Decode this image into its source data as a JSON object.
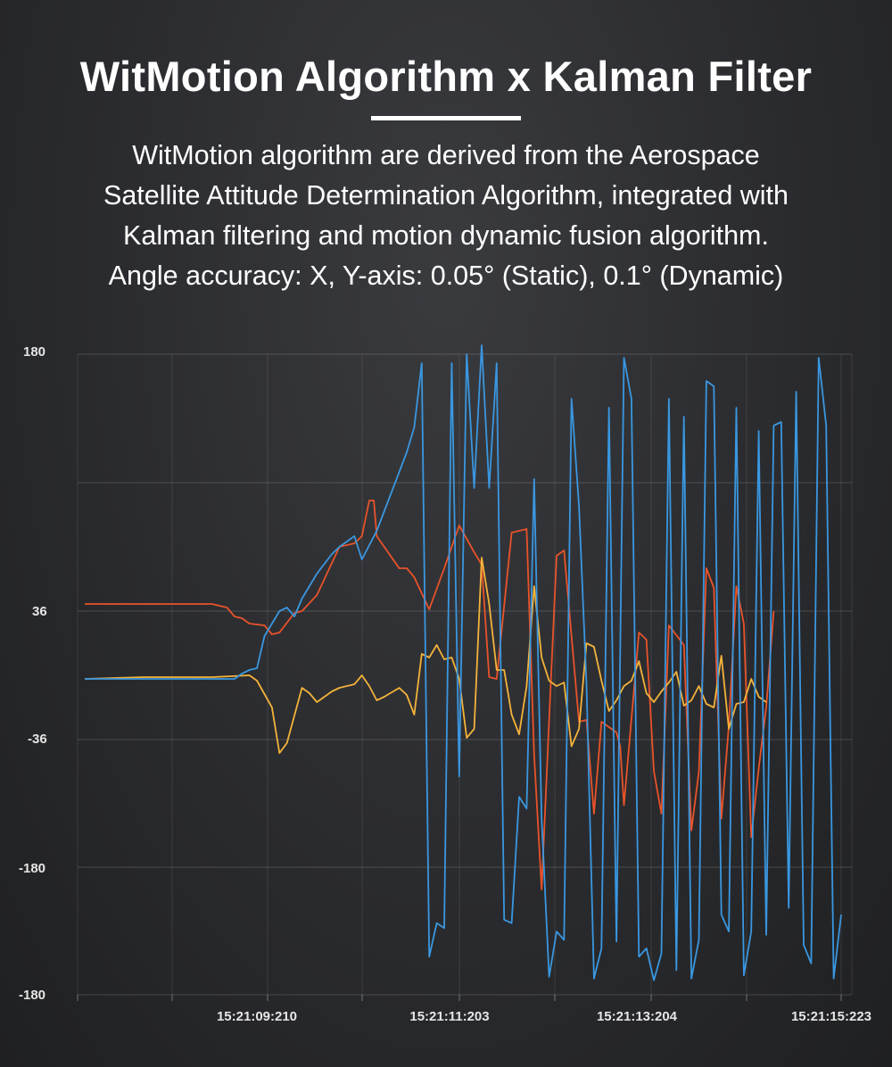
{
  "header": {
    "title": "WitMotion Algorithm x Kalman Filter",
    "description_lines": [
      "WitMotion algorithm are derived from the Aerospace",
      "Satellite Attitude Determination Algorithm, integrated with",
      "Kalman filtering and motion dynamic fusion algorithm.",
      "Angle accuracy: X, Y-axis: 0.05° (Static), 0.1° (Dynamic)"
    ]
  },
  "chart_data": {
    "type": "line",
    "title": "",
    "xlabel": "",
    "ylabel": "",
    "ylim": [
      -180,
      180
    ],
    "y_tick_labels": [
      "180",
      "36",
      "-36",
      "-180",
      "-180"
    ],
    "x_tick_labels": [
      "15:21:09:210",
      "15:21:11:203",
      "15:21:13:204",
      "15:21:15:223"
    ],
    "grid": true,
    "legend": "none",
    "series": [
      {
        "color": "#e8532b",
        "points": [
          [
            0,
            40
          ],
          [
            8,
            40
          ],
          [
            17,
            40
          ],
          [
            19,
            38
          ],
          [
            20,
            33
          ],
          [
            21,
            32
          ],
          [
            22,
            29
          ],
          [
            24,
            28
          ],
          [
            25,
            23
          ],
          [
            26,
            24
          ],
          [
            28,
            35
          ],
          [
            29,
            36
          ],
          [
            31,
            45
          ],
          [
            34,
            72
          ],
          [
            36,
            74
          ],
          [
            37,
            78
          ],
          [
            38,
            98
          ],
          [
            38.6,
            98
          ],
          [
            39,
            78
          ],
          [
            42,
            60
          ],
          [
            43,
            60
          ],
          [
            44,
            55
          ],
          [
            46,
            37
          ],
          [
            48,
            60
          ],
          [
            50,
            84
          ],
          [
            52,
            69
          ],
          [
            53,
            62
          ],
          [
            54,
            -1
          ],
          [
            55,
            -2
          ],
          [
            57,
            80
          ],
          [
            59,
            82
          ],
          [
            60,
            -45
          ],
          [
            61,
            -125
          ],
          [
            62,
            -25
          ],
          [
            63,
            67
          ],
          [
            64,
            70
          ],
          [
            66,
            -26
          ],
          [
            67,
            -25
          ],
          [
            68,
            -80
          ],
          [
            69,
            -26
          ],
          [
            71,
            -32
          ],
          [
            71.5,
            -40
          ],
          [
            72,
            -75
          ],
          [
            74,
            24
          ],
          [
            75,
            20
          ],
          [
            76,
            -55
          ],
          [
            77,
            -80
          ],
          [
            78,
            28
          ],
          [
            80,
            17
          ],
          [
            81,
            -90
          ],
          [
            82,
            -55
          ],
          [
            83,
            60
          ],
          [
            84,
            49
          ],
          [
            85,
            -83
          ],
          [
            86,
            -28
          ],
          [
            87,
            50
          ],
          [
            88,
            29
          ],
          [
            89,
            -94
          ],
          [
            90,
            -53
          ],
          [
            91,
            -18
          ],
          [
            92,
            36
          ]
        ]
      },
      {
        "color": "#f3b33b",
        "points": [
          [
            0,
            -2
          ],
          [
            8,
            -1
          ],
          [
            17,
            -1
          ],
          [
            22,
            0
          ],
          [
            23,
            -3
          ],
          [
            25,
            -18
          ],
          [
            26,
            -44
          ],
          [
            27,
            -38
          ],
          [
            29,
            -7
          ],
          [
            30,
            -10
          ],
          [
            31,
            -15
          ],
          [
            32,
            -12
          ],
          [
            33,
            -9
          ],
          [
            34,
            -7
          ],
          [
            36,
            -5
          ],
          [
            37,
            0
          ],
          [
            38,
            -6
          ],
          [
            39,
            -14
          ],
          [
            40,
            -12
          ],
          [
            42,
            -7
          ],
          [
            43,
            -11
          ],
          [
            44,
            -22
          ],
          [
            45,
            12
          ],
          [
            46,
            10
          ],
          [
            47,
            17
          ],
          [
            48,
            9
          ],
          [
            49,
            10
          ],
          [
            50,
            -2
          ],
          [
            51,
            -35
          ],
          [
            52,
            -30
          ],
          [
            53,
            66
          ],
          [
            54,
            40
          ],
          [
            55,
            3
          ],
          [
            56,
            3
          ],
          [
            57,
            -22
          ],
          [
            58,
            -33
          ],
          [
            59,
            -6
          ],
          [
            60,
            50
          ],
          [
            61,
            10
          ],
          [
            62,
            -3
          ],
          [
            63,
            -6
          ],
          [
            64,
            -4
          ],
          [
            65,
            -40
          ],
          [
            66,
            -30
          ],
          [
            67,
            18
          ],
          [
            68,
            16
          ],
          [
            69,
            -3
          ],
          [
            70,
            -20
          ],
          [
            71,
            -14
          ],
          [
            72,
            -6
          ],
          [
            73,
            -3
          ],
          [
            74,
            8
          ],
          [
            75,
            -10
          ],
          [
            76,
            -15
          ],
          [
            77,
            -9
          ],
          [
            78,
            -4
          ],
          [
            79,
            2
          ],
          [
            80,
            -17
          ],
          [
            81,
            -14
          ],
          [
            82,
            -6
          ],
          [
            83,
            -16
          ],
          [
            84,
            -18
          ],
          [
            85,
            11
          ],
          [
            86,
            -30
          ],
          [
            87,
            -16
          ],
          [
            88,
            -15
          ],
          [
            89,
            -2
          ],
          [
            90,
            -12
          ],
          [
            91,
            -15
          ]
        ]
      },
      {
        "color": "#3a97e0",
        "points": [
          [
            0,
            -2
          ],
          [
            8,
            -2
          ],
          [
            17,
            -2
          ],
          [
            20,
            -2
          ],
          [
            21,
            1
          ],
          [
            22,
            3
          ],
          [
            23,
            4
          ],
          [
            24,
            22
          ],
          [
            26,
            36
          ],
          [
            27,
            38
          ],
          [
            28,
            33
          ],
          [
            29,
            43
          ],
          [
            31,
            57
          ],
          [
            33,
            68
          ],
          [
            34,
            72
          ],
          [
            36,
            78
          ],
          [
            37,
            65
          ],
          [
            39,
            81
          ],
          [
            43,
            125
          ],
          [
            44,
            139
          ],
          [
            45,
            175
          ],
          [
            46,
            -165
          ],
          [
            47,
            -145
          ],
          [
            48,
            -148
          ],
          [
            49,
            175
          ],
          [
            50,
            -58
          ],
          [
            51,
            180
          ],
          [
            52,
            105
          ],
          [
            53,
            185
          ],
          [
            54,
            105
          ],
          [
            55,
            175
          ],
          [
            56,
            -143
          ],
          [
            57,
            -145
          ],
          [
            58,
            -70
          ],
          [
            59,
            -77
          ],
          [
            60,
            110
          ],
          [
            61,
            -83
          ],
          [
            62,
            -177
          ],
          [
            63,
            -150
          ],
          [
            64,
            -155
          ],
          [
            65,
            155
          ],
          [
            66,
            95
          ],
          [
            67,
            -5
          ],
          [
            68,
            -178
          ],
          [
            69,
            -160
          ],
          [
            70,
            150
          ],
          [
            71,
            -156
          ],
          [
            72,
            178
          ],
          [
            73,
            155
          ],
          [
            74,
            -165
          ],
          [
            75,
            -160
          ],
          [
            76,
            -179
          ],
          [
            77,
            -163
          ],
          [
            78,
            155
          ],
          [
            79,
            -173
          ],
          [
            80,
            145
          ],
          [
            81,
            -178
          ],
          [
            82,
            -155
          ],
          [
            83,
            165
          ],
          [
            84,
            162
          ],
          [
            85,
            -140
          ],
          [
            86,
            -150
          ],
          [
            87,
            150
          ],
          [
            88,
            -176
          ],
          [
            89,
            -150
          ],
          [
            90,
            137
          ],
          [
            91,
            -152
          ],
          [
            92,
            140
          ],
          [
            93,
            142
          ],
          [
            94,
            -136
          ],
          [
            95,
            159
          ],
          [
            96,
            -158
          ],
          [
            97,
            -169
          ],
          [
            98,
            178
          ],
          [
            99,
            140
          ],
          [
            100,
            -178
          ],
          [
            101,
            -140
          ]
        ]
      }
    ]
  }
}
